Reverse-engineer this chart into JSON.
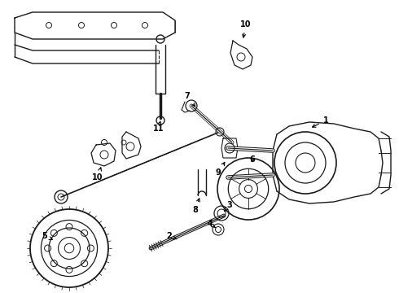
{
  "bg_color": "#ffffff",
  "line_color": "#1a1a1a",
  "text_color": "#000000",
  "figsize": [
    4.9,
    3.6
  ],
  "dpi": 100,
  "xlim": [
    0,
    490
  ],
  "ylim": [
    0,
    360
  ]
}
